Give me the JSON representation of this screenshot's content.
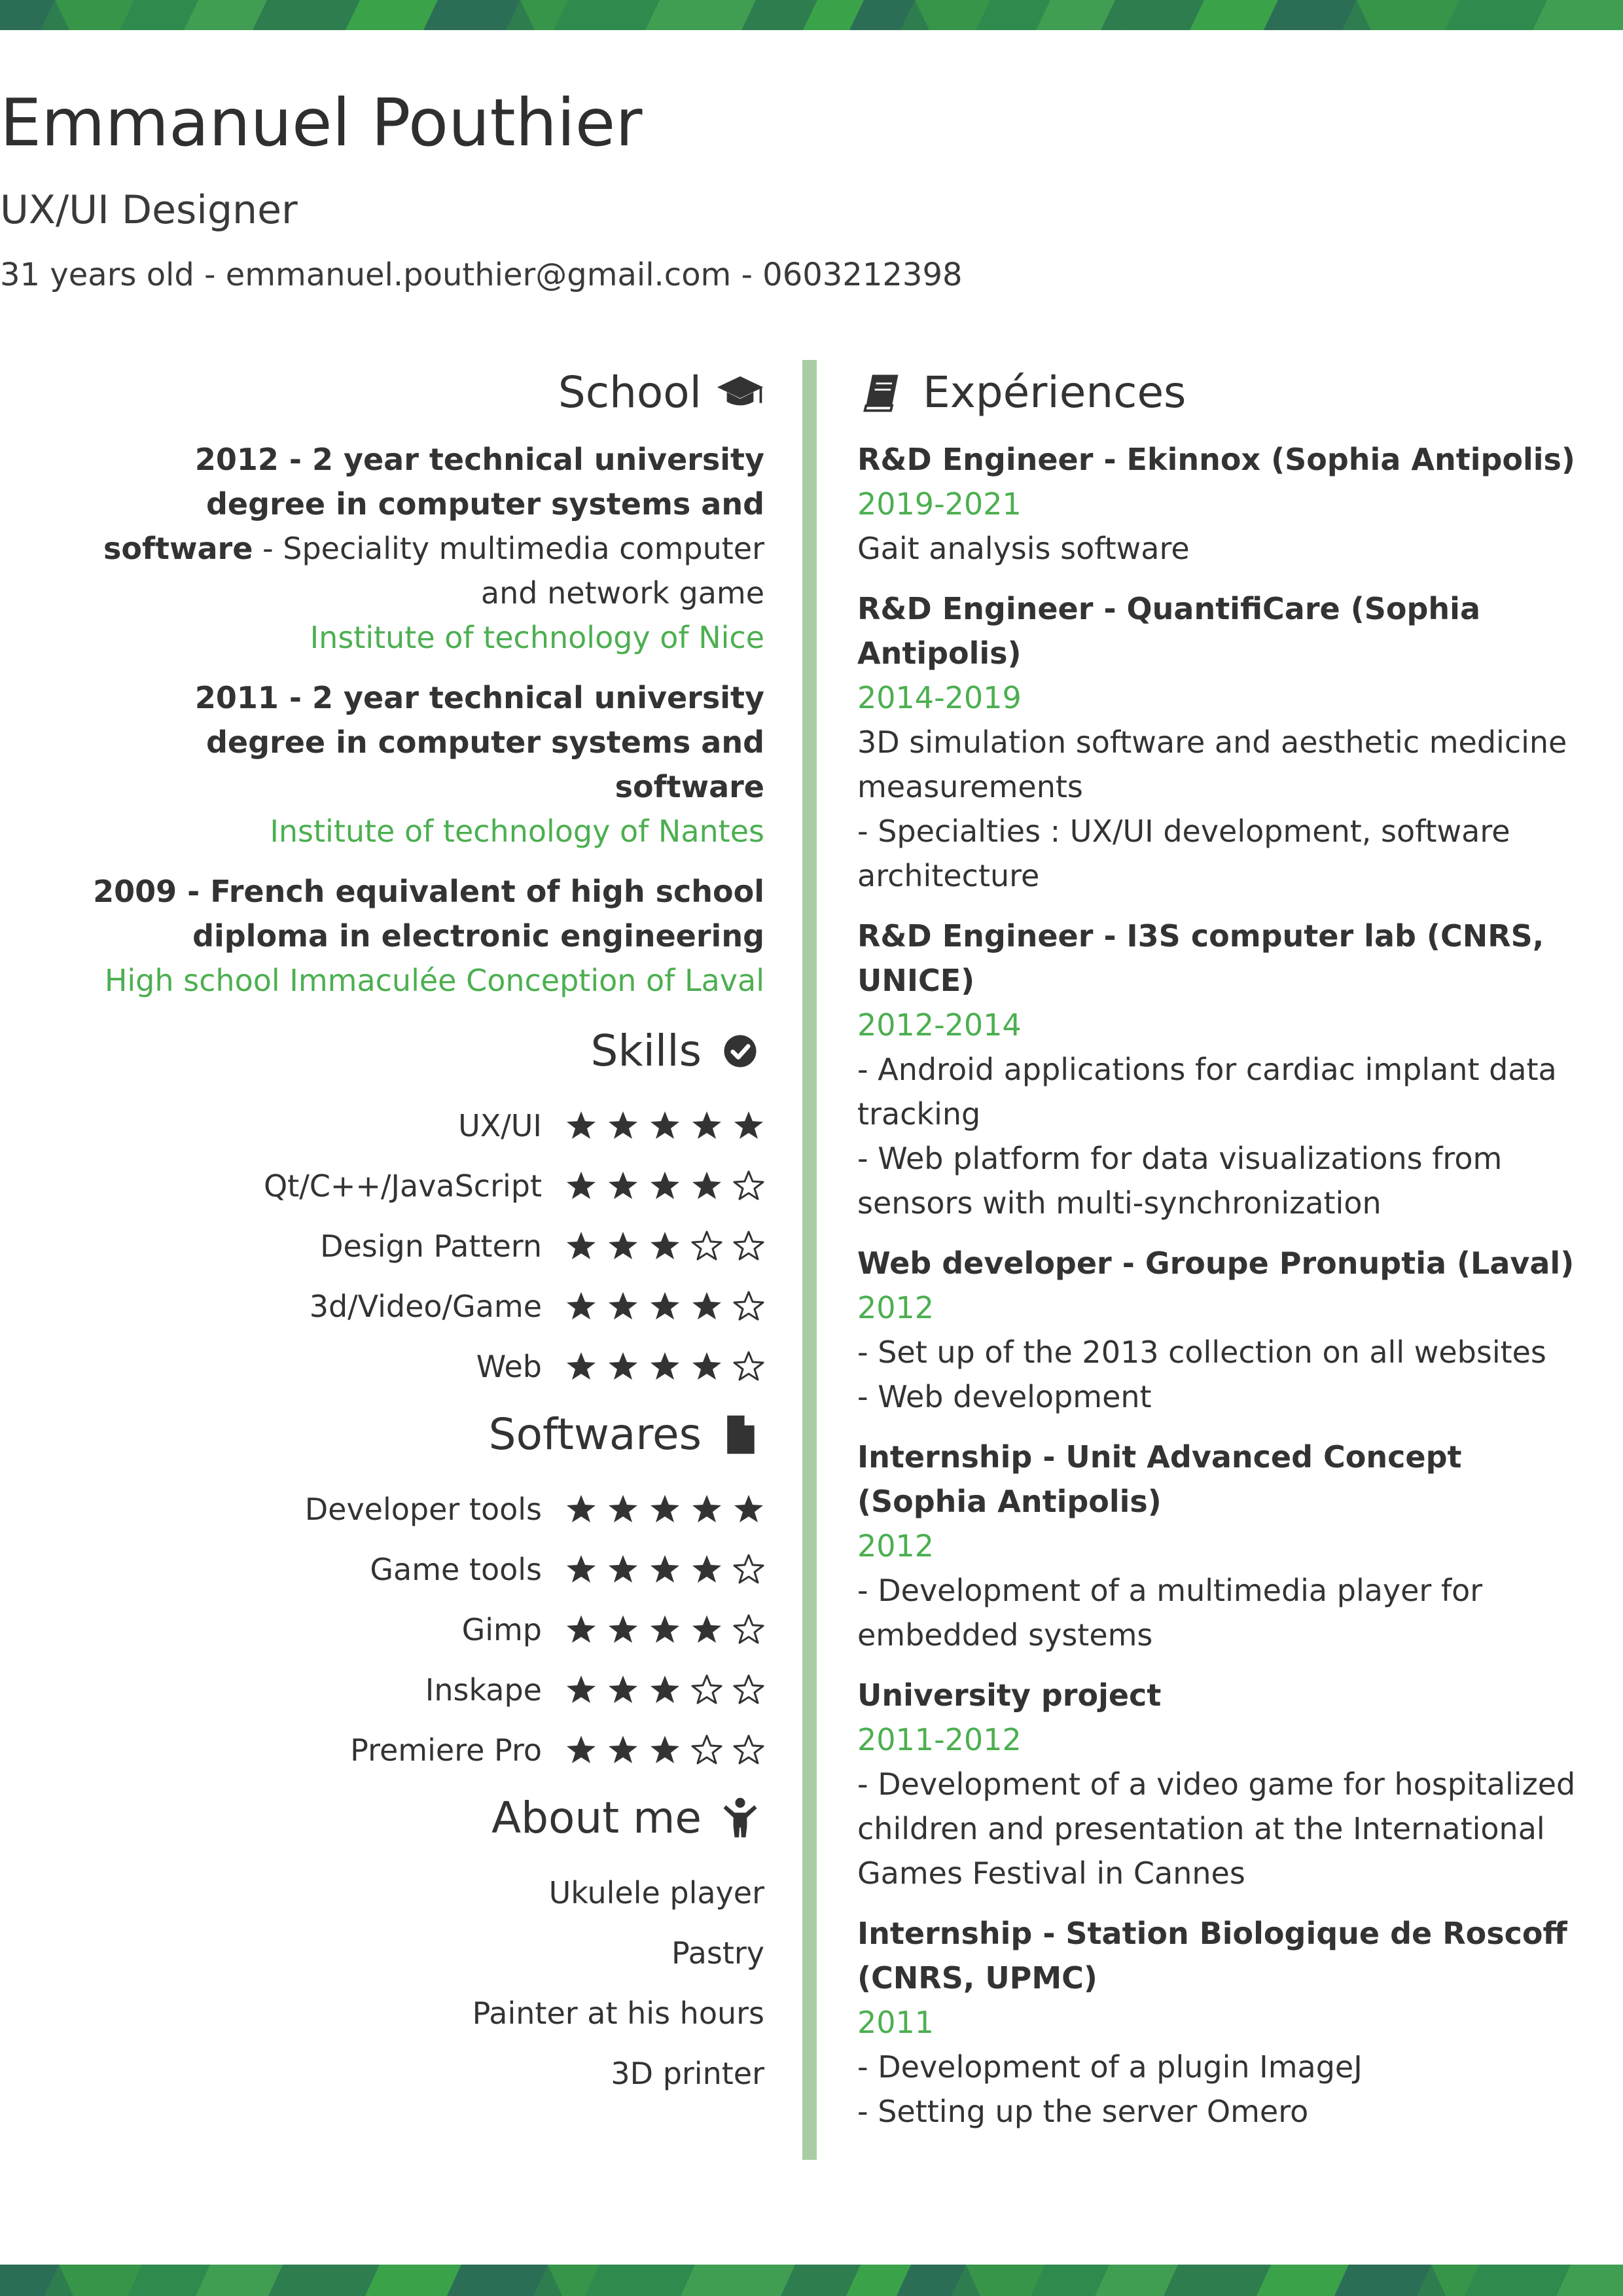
{
  "header": {
    "name": "Emmanuel Pouthier",
    "role": "UX/UI Designer",
    "contact": "31 years old - emmanuel.pouthier@gmail.com - 0603212398"
  },
  "colors": {
    "accent": "#4caf50",
    "divider": "#a8cda3",
    "text": "#333333",
    "band_dark": "#2e7d4f",
    "band_light": "#3aa34a"
  },
  "school": {
    "title": "School",
    "icon": "graduation-cap-icon",
    "items": [
      {
        "title": "2012 - 2 year technical university degree in computer systems and software",
        "detail": " - Speciality multimedia computer and network game",
        "institution": "Institute of technology of Nice"
      },
      {
        "title": "2011 - 2 year technical university degree in computer systems and software",
        "detail": "",
        "institution": "Institute of technology of Nantes"
      },
      {
        "title": "2009 - French equivalent of high school diploma in electronic engineering",
        "detail": "",
        "institution": "High school Immaculée Conception of Laval"
      }
    ]
  },
  "skills": {
    "title": "Skills",
    "icon": "check-circle-icon",
    "items": [
      {
        "label": "UX/UI",
        "rating": 5
      },
      {
        "label": "Qt/C++/JavaScript",
        "rating": 4
      },
      {
        "label": "Design Pattern",
        "rating": 3
      },
      {
        "label": "3d/Video/Game",
        "rating": 4
      },
      {
        "label": "Web",
        "rating": 4
      }
    ]
  },
  "softwares": {
    "title": "Softwares",
    "icon": "file-icon",
    "items": [
      {
        "label": "Developer tools",
        "rating": 5
      },
      {
        "label": "Game tools",
        "rating": 4
      },
      {
        "label": "Gimp",
        "rating": 4
      },
      {
        "label": "Inskape",
        "rating": 3
      },
      {
        "label": "Premiere Pro",
        "rating": 3
      }
    ]
  },
  "about": {
    "title": "About me",
    "icon": "child-icon",
    "items": [
      "Ukulele player",
      "Pastry",
      "Painter at his hours",
      "3D printer"
    ]
  },
  "experiences": {
    "title": "Expériences",
    "icon": "book-icon",
    "items": [
      {
        "title": "R&D Engineer - Ekinnox (Sophia Antipolis)",
        "dates": "2019-2021",
        "lines": [
          "Gait analysis software"
        ]
      },
      {
        "title": "R&D Engineer - QuantifiCare (Sophia Antipolis)",
        "dates": "2014-2019",
        "lines": [
          "3D simulation software and aesthetic medicine measurements",
          "- Specialties : UX/UI development, software architecture"
        ]
      },
      {
        "title": "R&D Engineer - I3S computer lab (CNRS, UNICE)",
        "dates": "2012-2014",
        "lines": [
          "- Android applications for cardiac implant data tracking",
          "- Web platform for data visualizations from sensors with multi-synchronization"
        ]
      },
      {
        "title": "Web developer - Groupe Pronuptia (Laval)",
        "dates": "2012",
        "lines": [
          "- Set up of the 2013 collection on all websites",
          "- Web development"
        ]
      },
      {
        "title": "Internship - Unit Advanced Concept (Sophia Antipolis)",
        "dates": "2012",
        "lines": [
          "- Development of a multimedia player for embedded systems"
        ]
      },
      {
        "title": "University project",
        "dates": "2011-2012",
        "lines": [
          "- Development of a video game for hospitalized children and presentation at the International Games Festival in Cannes"
        ]
      },
      {
        "title": "Internship - Station Biologique de Roscoff (CNRS, UPMC)",
        "dates": "2011",
        "lines": [
          "- Development of a plugin ImageJ",
          "- Setting up the server Omero"
        ]
      }
    ]
  }
}
